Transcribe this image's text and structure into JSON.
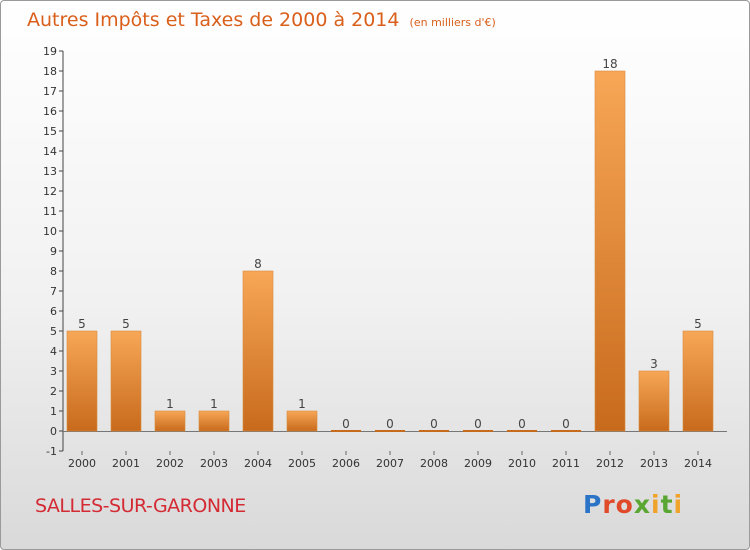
{
  "header": {
    "title": "Autres Impôts et Taxes de 2000 à 2014",
    "unit": "(en milliers d'€)"
  },
  "footer": {
    "commune": "SALLES-SUR-GARONNE",
    "logo": "Proxiti"
  },
  "colors": {
    "bar_light": "#f7a757",
    "bar_dark": "#c86a1c",
    "title": "#d95f1a",
    "commune": "#d42a33"
  },
  "chart_data": {
    "type": "bar",
    "title": "Autres Impôts et Taxes de 2000 à 2014",
    "subtitle": "(en milliers d'€)",
    "categories": [
      "2000",
      "2001",
      "2002",
      "2003",
      "2004",
      "2005",
      "2006",
      "2007",
      "2008",
      "2009",
      "2010",
      "2011",
      "2012",
      "2013",
      "2014"
    ],
    "values": [
      5,
      5,
      1,
      1,
      8,
      1,
      0,
      0,
      0,
      0,
      0,
      0,
      18,
      3,
      5
    ],
    "ylim": [
      -1,
      19
    ],
    "yticks": [
      -1,
      0,
      1,
      2,
      3,
      4,
      5,
      6,
      7,
      8,
      9,
      10,
      11,
      12,
      13,
      14,
      15,
      16,
      17,
      18,
      19
    ],
    "xlabel": "",
    "ylabel": "",
    "grid": false,
    "data_labels": true
  }
}
